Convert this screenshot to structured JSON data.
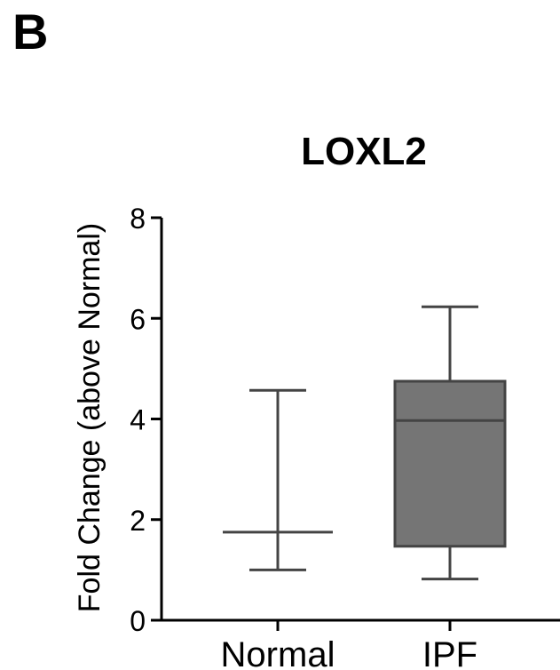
{
  "panel_label": "B",
  "chart_data": {
    "type": "box",
    "title": "LOXL2",
    "xlabel": "",
    "ylabel": "Fold Change (above Normal)",
    "ylim": [
      0,
      8
    ],
    "yticks": [
      0,
      2,
      4,
      6,
      8
    ],
    "categories": [
      "Normal",
      "IPF"
    ],
    "boxes": [
      {
        "category": "Normal",
        "min": 1.0,
        "q1": 1.75,
        "median": 1.75,
        "q3": 1.75,
        "max": 4.57,
        "fill": "#757575"
      },
      {
        "category": "IPF",
        "min": 0.82,
        "q1": 1.47,
        "median": 3.97,
        "q3": 4.75,
        "max": 6.23,
        "fill": "#757575"
      }
    ],
    "grid": false,
    "line_color": "#444444"
  }
}
